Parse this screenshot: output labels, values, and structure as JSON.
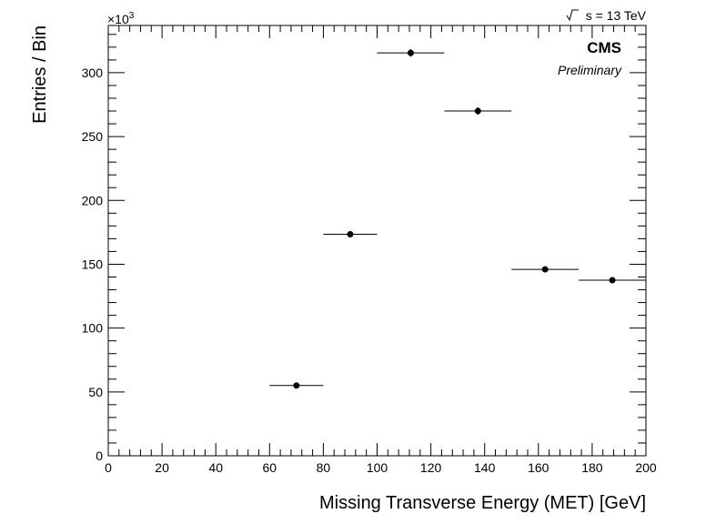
{
  "chart_data": {
    "type": "scatter",
    "title": "",
    "xlabel": "Missing Transverse Energy (MET) [GeV]",
    "ylabel": "Entries / Bin",
    "xlim": [
      0,
      200
    ],
    "ylim": [
      0,
      337
    ],
    "y_multiplier_label": "×10",
    "y_multiplier_exponent": "3",
    "x_ticks": [
      "0",
      "20",
      "40",
      "60",
      "80",
      "100",
      "120",
      "140",
      "160",
      "180",
      "200"
    ],
    "y_ticks": [
      "0",
      "50",
      "100",
      "150",
      "200",
      "250",
      "300"
    ],
    "grid": false,
    "legend": "none",
    "series": [
      {
        "points": [
          {
            "x_low": 60,
            "x_high": 80,
            "y": 55,
            "y_err": 0.5
          },
          {
            "x_low": 80,
            "x_high": 100,
            "y": 173.5,
            "y_err": 1.5
          },
          {
            "x_low": 100,
            "x_high": 125,
            "y": 315.5,
            "y_err": 3.0
          },
          {
            "x_low": 125,
            "x_high": 150,
            "y": 270,
            "y_err": 3.0
          },
          {
            "x_low": 150,
            "x_high": 175,
            "y": 146,
            "y_err": 1.5
          },
          {
            "x_low": 175,
            "x_high": 200,
            "y": 137.5,
            "y_err": 1.5
          }
        ]
      }
    ]
  },
  "annotations": {
    "experiment": "CMS",
    "status": "Preliminary",
    "energy": "s = 13 TeV"
  }
}
